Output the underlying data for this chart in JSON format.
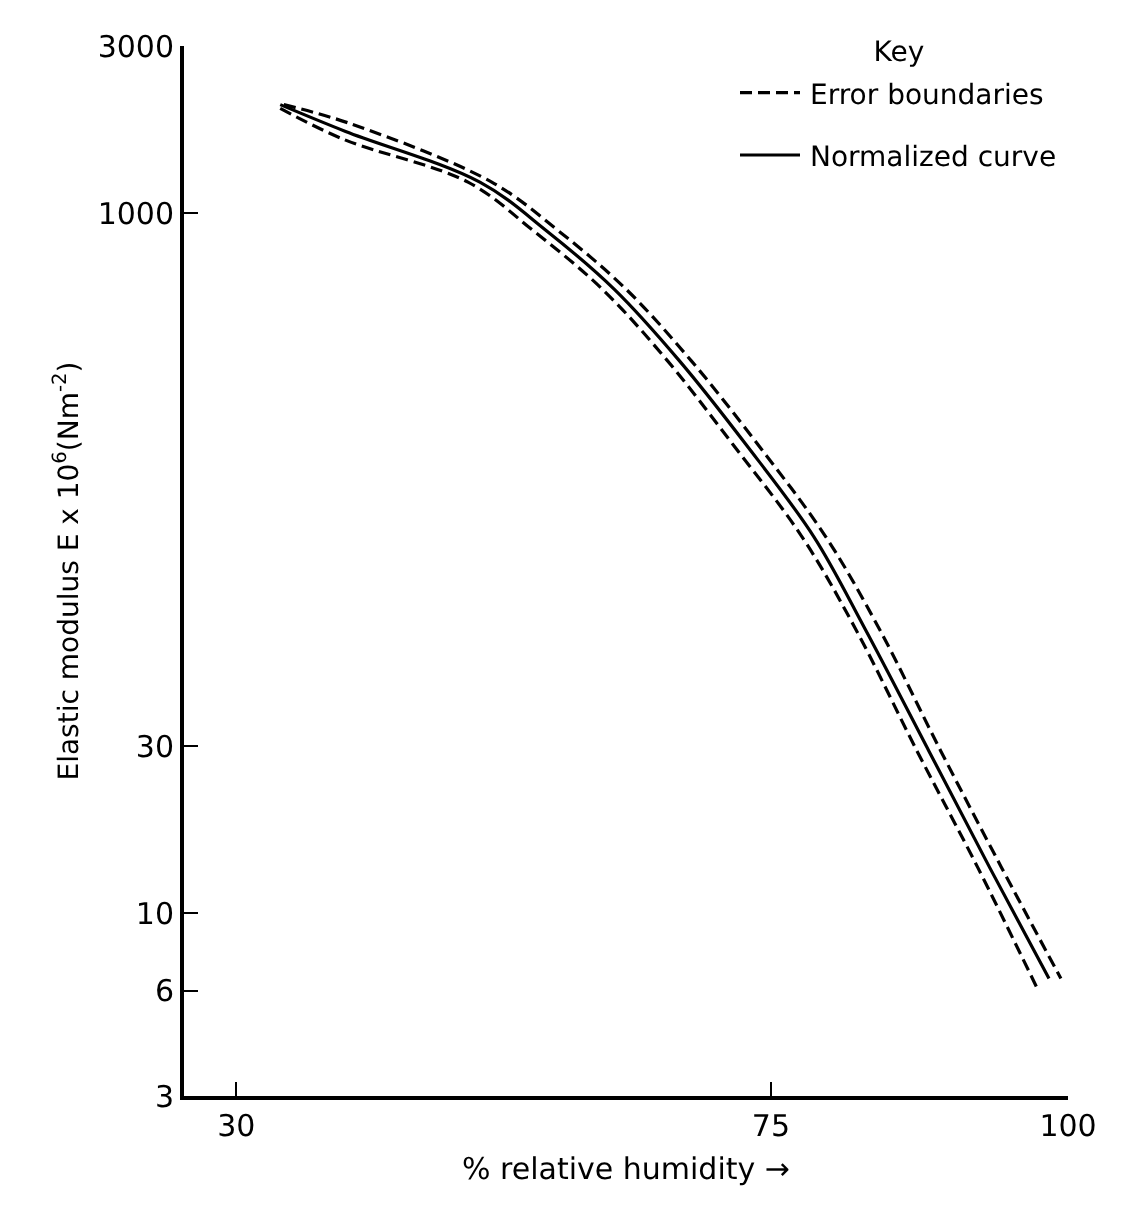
{
  "chart_data": {
    "type": "line",
    "xlabel": "% relative humidity →",
    "ylabel": "Elastic modulus E x 10$^{6}$(Nm$^{-2}$)",
    "legend_title": "Key",
    "xlim": [
      25.6,
      100
    ],
    "xticks": [
      30,
      75,
      100
    ],
    "ylim": [
      3,
      3000
    ],
    "yticks": [
      3,
      6,
      10,
      30,
      1000,
      3000
    ],
    "log": "y",
    "legend": "top right",
    "marker": "none",
    "series": [
      {
        "name": "Error boundaries",
        "color": "#000000",
        "line_style": "dashed",
        "x": [
          34.0,
          39.6,
          51.5,
          57.1,
          62.8,
          68.3,
          73.9,
          79.6,
          84.1,
          89.3,
          94.4,
          99.4
        ],
        "values": [
          2040,
          1800,
          1225,
          890,
          606,
          378,
          218,
          119,
          65,
          29,
          13.5,
          6.5
        ]
      },
      {
        "color": "#000000",
        "line_style": "dashed",
        "x": [
          33.7,
          39.1,
          49.5,
          55.0,
          60.8,
          66.3,
          71.8,
          77.6,
          82.1,
          87.3,
          92.4,
          97.4
        ],
        "values": [
          1990,
          1620,
          1225,
          890,
          606,
          378,
          218,
          119,
          65,
          29,
          13.5,
          6.1
        ]
      },
      {
        "name": "Normalized curve",
        "color": "#000000",
        "line_style": "solid",
        "x": [
          33.7,
          39.2,
          50.5,
          56.1,
          61.8,
          67.3,
          72.9,
          78.6,
          82.9,
          88.3,
          93.4,
          98.4
        ],
        "values": [
          2040,
          1710,
          1225,
          890,
          606,
          378,
          218,
          119,
          65,
          29,
          13.5,
          6.5
        ]
      }
    ]
  }
}
